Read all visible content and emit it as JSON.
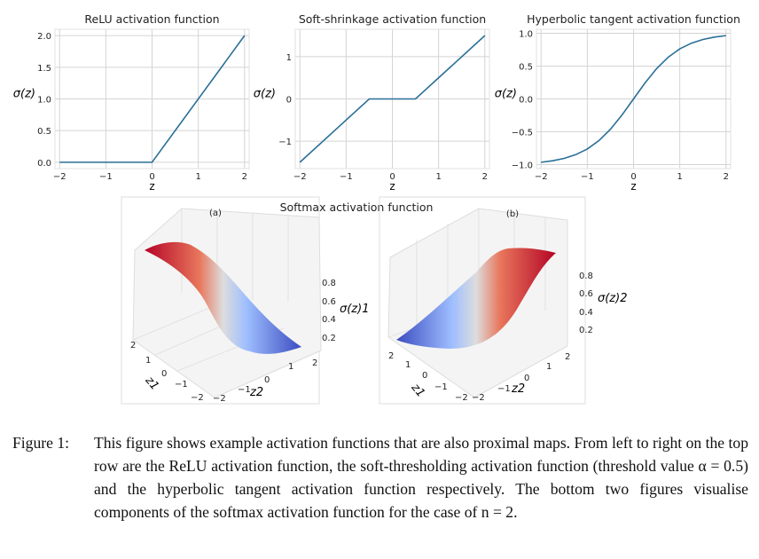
{
  "chart_data": [
    {
      "type": "line",
      "title": "ReLU activation function",
      "xlabel": "z",
      "ylabel": "σ(z)",
      "xlim": [
        -2.1,
        2.1
      ],
      "ylim": [
        -0.1,
        2.1
      ],
      "xticks": [
        "−2",
        "−1",
        "0",
        "1",
        "2"
      ],
      "xtick_values": [
        -2,
        -1,
        0,
        1,
        2
      ],
      "yticks": [
        "0.0",
        "0.5",
        "1.0",
        "1.5",
        "2.0"
      ],
      "ytick_values": [
        0,
        0.5,
        1,
        1.5,
        2
      ],
      "x": [
        -2,
        0,
        2
      ],
      "y": [
        0,
        0,
        2
      ],
      "grid": true
    },
    {
      "type": "line",
      "title": "Soft-shrinkage activation function",
      "xlabel": "z",
      "ylabel": "σ(z)",
      "xlim": [
        -2.1,
        2.1
      ],
      "ylim": [
        -1.65,
        1.65
      ],
      "xticks": [
        "−2",
        "−1",
        "0",
        "1",
        "2"
      ],
      "xtick_values": [
        -2,
        -1,
        0,
        1,
        2
      ],
      "yticks": [
        "−1",
        "0",
        "1"
      ],
      "ytick_values": [
        -1,
        0,
        1
      ],
      "x": [
        -2,
        -0.5,
        0.5,
        2
      ],
      "y": [
        -1.5,
        0,
        0,
        1.5
      ],
      "grid": true
    },
    {
      "type": "line",
      "title": "Hyperbolic tangent activation function",
      "xlabel": "z",
      "ylabel": "σ(z)",
      "xlim": [
        -2.1,
        2.1
      ],
      "ylim": [
        -1.06,
        1.06
      ],
      "xticks": [
        "−2",
        "−1",
        "0",
        "1",
        "2"
      ],
      "xtick_values": [
        -2,
        -1,
        0,
        1,
        2
      ],
      "yticks": [
        "−1.0",
        "−0.5",
        "0.0",
        "0.5",
        "1.0"
      ],
      "ytick_values": [
        -1,
        -0.5,
        0,
        0.5,
        1
      ],
      "x": [
        -2,
        -1.75,
        -1.5,
        -1.25,
        -1,
        -0.75,
        -0.5,
        -0.25,
        0,
        0.25,
        0.5,
        0.75,
        1,
        1.25,
        1.5,
        1.75,
        2
      ],
      "y": [
        -0.964,
        -0.941,
        -0.905,
        -0.848,
        -0.762,
        -0.635,
        -0.462,
        -0.245,
        0,
        0.245,
        0.462,
        0.635,
        0.762,
        0.848,
        0.905,
        0.941,
        0.964
      ],
      "grid": true
    },
    {
      "type": "surface",
      "title": "Softmax activation function",
      "panel": "(a)",
      "xlabel": "z1",
      "ylabel": "z2",
      "zlabel": "σ(z)1",
      "xticks": [
        "2",
        "1",
        "0",
        "−1",
        "−2"
      ],
      "yticks": [
        "−2",
        "−1",
        "0",
        "1",
        "2"
      ],
      "zticks": [
        "0.8",
        "0.6",
        "0.4",
        "0.2"
      ],
      "colormap": "coolwarm"
    },
    {
      "type": "surface",
      "panel": "(b)",
      "xlabel": "z1",
      "ylabel": "z2",
      "zlabel": "σ(z)2",
      "xticks": [
        "2",
        "1",
        "0",
        "−1",
        "−2"
      ],
      "yticks": [
        "−2",
        "−1",
        "0",
        "1",
        "2"
      ],
      "zticks": [
        "0.8",
        "0.6",
        "0.4",
        "0.2"
      ],
      "colormap": "coolwarm"
    }
  ],
  "colors": {
    "line": "#2a6f97",
    "grid": "#d4d4d4",
    "red": "#b40426",
    "blue": "#3b4cc0",
    "mid": "#dddddd"
  },
  "caption": {
    "label": "Figure 1:",
    "text": "This figure shows example activation functions that are also proximal maps. From left to right on the top row are the ReLU activation function, the soft-thresholding activation function (threshold value α = 0.5) and the hyperbolic tangent activation function respectively. The bottom two figures visualise components of the softmax activation function for the case of n = 2."
  }
}
